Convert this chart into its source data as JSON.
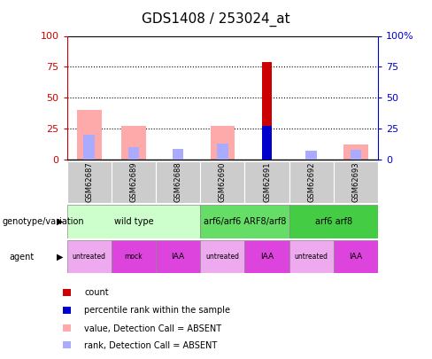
{
  "title": "GDS1408 / 253024_at",
  "samples": [
    "GSM62687",
    "GSM62689",
    "GSM62688",
    "GSM62690",
    "GSM62691",
    "GSM62692",
    "GSM62693"
  ],
  "count_values": [
    0,
    0,
    0,
    0,
    79,
    0,
    0
  ],
  "percentile_rank": [
    0,
    0,
    0,
    0,
    27,
    0,
    0
  ],
  "absent_value": [
    40,
    27,
    0,
    27,
    0,
    0,
    12
  ],
  "absent_rank": [
    20,
    10,
    9,
    13,
    0,
    7,
    8
  ],
  "count_color": "#cc0000",
  "percentile_color": "#0000cc",
  "absent_value_color": "#ffaaaa",
  "absent_rank_color": "#aaaaff",
  "ylim": [
    0,
    100
  ],
  "yticks": [
    0,
    25,
    50,
    75,
    100
  ],
  "ytick_labels_left": [
    "0",
    "25",
    "50",
    "75",
    "100"
  ],
  "ytick_labels_right": [
    "0",
    "25",
    "50",
    "75",
    "100%"
  ],
  "genotype_groups": [
    {
      "label": "wild type",
      "start": 0,
      "end": 3,
      "color": "#ccffcc"
    },
    {
      "label": "arf6/arf6 ARF8/arf8",
      "start": 3,
      "end": 5,
      "color": "#66dd66"
    },
    {
      "label": "arf6 arf8",
      "start": 5,
      "end": 7,
      "color": "#44cc44"
    }
  ],
  "agent_groups": [
    {
      "label": "untreated",
      "start": 0,
      "end": 1,
      "color": "#eeaaee"
    },
    {
      "label": "mock",
      "start": 1,
      "end": 2,
      "color": "#dd44dd"
    },
    {
      "label": "IAA",
      "start": 2,
      "end": 3,
      "color": "#dd44dd"
    },
    {
      "label": "untreated",
      "start": 3,
      "end": 4,
      "color": "#eeaaee"
    },
    {
      "label": "IAA",
      "start": 4,
      "end": 5,
      "color": "#dd44dd"
    },
    {
      "label": "untreated",
      "start": 5,
      "end": 6,
      "color": "#eeaaee"
    },
    {
      "label": "IAA",
      "start": 6,
      "end": 7,
      "color": "#dd44dd"
    }
  ],
  "legend_items": [
    {
      "label": "count",
      "color": "#cc0000"
    },
    {
      "label": "percentile rank within the sample",
      "color": "#0000cc"
    },
    {
      "label": "value, Detection Call = ABSENT",
      "color": "#ffaaaa"
    },
    {
      "label": "rank, Detection Call = ABSENT",
      "color": "#aaaaff"
    }
  ],
  "genotype_label": "genotype/variation",
  "agent_label": "agent",
  "axis_color_left": "#cc0000",
  "axis_color_right": "#0000cc",
  "sample_box_color": "#cccccc",
  "absent_value_bar_width": 0.55,
  "absent_rank_bar_width": 0.25,
  "count_bar_width": 0.2,
  "percentile_bar_width": 0.2
}
